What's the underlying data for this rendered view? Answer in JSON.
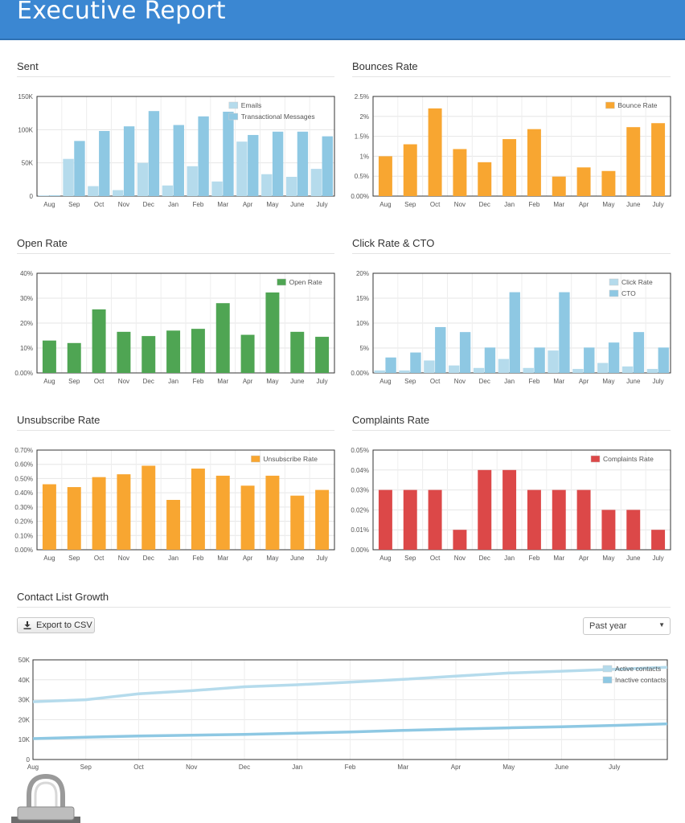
{
  "header": {
    "title": "Executive Report"
  },
  "sections": {
    "sent": "Sent",
    "bounces": "Bounces Rate",
    "open": "Open Rate",
    "click": "Click Rate & CTO",
    "unsub": "Unsubscribe Rate",
    "complaints": "Complaints Rate",
    "growth": "Contact List Growth"
  },
  "controls": {
    "export_label": "Export to CSV",
    "period_value": "Past year"
  },
  "colors": {
    "light_blue": "#b5dbec",
    "blue": "#8ec8e3",
    "orange": "#f8a631",
    "green": "#4fa553",
    "red": "#dc4848",
    "header": "#3b87d2"
  },
  "chart_data": [
    {
      "id": "sent",
      "type": "bar",
      "categories": [
        "Aug",
        "Sep",
        "Oct",
        "Nov",
        "Dec",
        "Jan",
        "Feb",
        "Mar",
        "Apr",
        "May",
        "June",
        "July"
      ],
      "yticks": [
        "0",
        "50K",
        "100K",
        "150K"
      ],
      "ylim": [
        0,
        150000
      ],
      "series": [
        {
          "name": "Emails",
          "color": "#b5dbec",
          "values": [
            1000,
            56000,
            15000,
            9000,
            50000,
            16000,
            45000,
            22000,
            82000,
            33000,
            29000,
            41000
          ]
        },
        {
          "name": "Transactional Messages",
          "color": "#8ec8e3",
          "values": [
            1000,
            83000,
            98000,
            105000,
            128000,
            107000,
            120000,
            127000,
            92000,
            97000,
            97000,
            90000
          ]
        }
      ],
      "legend": "top-right",
      "grid": true
    },
    {
      "id": "bounces",
      "type": "bar",
      "categories": [
        "Aug",
        "Sep",
        "Oct",
        "Nov",
        "Dec",
        "Jan",
        "Feb",
        "Mar",
        "Apr",
        "May",
        "June",
        "July"
      ],
      "yticks": [
        "0.00%",
        "0.5%",
        "1%",
        "1.5%",
        "2%",
        "2.5%"
      ],
      "ylim": [
        0,
        2.5
      ],
      "series": [
        {
          "name": "Bounce Rate",
          "color": "#f8a631",
          "values": [
            1.0,
            1.3,
            2.2,
            1.18,
            0.85,
            1.43,
            1.68,
            0.49,
            0.72,
            0.63,
            1.73,
            1.83
          ]
        }
      ],
      "legend": "top-right",
      "grid": true
    },
    {
      "id": "open",
      "type": "bar",
      "categories": [
        "Aug",
        "Sep",
        "Oct",
        "Nov",
        "Dec",
        "Jan",
        "Feb",
        "Mar",
        "Apr",
        "May",
        "June",
        "July"
      ],
      "yticks": [
        "0.00%",
        "10%",
        "20%",
        "30%",
        "40%"
      ],
      "ylim": [
        0,
        40
      ],
      "series": [
        {
          "name": "Open Rate",
          "color": "#4fa553",
          "values": [
            13,
            12,
            25.5,
            16.5,
            14.8,
            17,
            17.7,
            28,
            15.3,
            32.3,
            16.5,
            14.5
          ]
        }
      ],
      "legend": "top-right",
      "grid": true
    },
    {
      "id": "click",
      "type": "bar",
      "categories": [
        "Aug",
        "Sep",
        "Oct",
        "Nov",
        "Dec",
        "Jan",
        "Feb",
        "Mar",
        "Apr",
        "May",
        "June",
        "July"
      ],
      "yticks": [
        "0.00%",
        "5%",
        "10%",
        "15%",
        "20%"
      ],
      "ylim": [
        0,
        20
      ],
      "series": [
        {
          "name": "Click Rate",
          "color": "#b5dbec",
          "values": [
            0.5,
            0.5,
            2.5,
            1.5,
            1.0,
            2.8,
            1.0,
            4.5,
            0.8,
            2.0,
            1.3,
            0.8
          ]
        },
        {
          "name": "CTO",
          "color": "#8ec8e3",
          "values": [
            3.1,
            4.1,
            9.2,
            8.2,
            5.1,
            16.2,
            5.1,
            16.2,
            5.1,
            6.1,
            8.2,
            5.1
          ]
        }
      ],
      "legend": "top-right",
      "grid": true
    },
    {
      "id": "unsub",
      "type": "bar",
      "categories": [
        "Aug",
        "Sep",
        "Oct",
        "Nov",
        "Dec",
        "Jan",
        "Feb",
        "Mar",
        "Apr",
        "May",
        "June",
        "July"
      ],
      "yticks": [
        "0.00%",
        "0.10%",
        "0.20%",
        "0.30%",
        "0.40%",
        "0.50%",
        "0.60%",
        "0.70%"
      ],
      "ylim": [
        0,
        0.7
      ],
      "series": [
        {
          "name": "Unsubscribe Rate",
          "color": "#f8a631",
          "values": [
            0.46,
            0.44,
            0.51,
            0.53,
            0.59,
            0.35,
            0.57,
            0.52,
            0.45,
            0.52,
            0.38,
            0.42
          ]
        }
      ],
      "legend": "top-right",
      "grid": true
    },
    {
      "id": "complaints",
      "type": "bar",
      "categories": [
        "Aug",
        "Sep",
        "Oct",
        "Nov",
        "Dec",
        "Jan",
        "Feb",
        "Mar",
        "Apr",
        "May",
        "June",
        "July"
      ],
      "yticks": [
        "0.00%",
        "0.01%",
        "0.02%",
        "0.03%",
        "0.04%",
        "0.05%"
      ],
      "ylim": [
        0,
        0.05
      ],
      "series": [
        {
          "name": "Complaints Rate",
          "color": "#dc4848",
          "values": [
            0.03,
            0.03,
            0.03,
            0.01,
            0.04,
            0.04,
            0.03,
            0.03,
            0.03,
            0.02,
            0.02,
            0.01
          ]
        }
      ],
      "legend": "top-right",
      "grid": true
    },
    {
      "id": "growth",
      "type": "line",
      "x": [
        "Aug",
        "Sep",
        "Oct",
        "Nov",
        "Dec",
        "Jan",
        "Feb",
        "Mar",
        "Apr",
        "May",
        "June",
        "July",
        ""
      ],
      "yticks": [
        "0",
        "10K",
        "20K",
        "30K",
        "40K",
        "50K"
      ],
      "ylim": [
        0,
        50000
      ],
      "series": [
        {
          "name": "Active contacts",
          "color": "#b5dbec",
          "values": [
            29000,
            30000,
            33000,
            34500,
            36500,
            37500,
            38800,
            40200,
            41800,
            43400,
            44300,
            45300,
            46300
          ]
        },
        {
          "name": "Inactive contacts",
          "color": "#8ec8e3",
          "values": [
            10500,
            11200,
            11800,
            12200,
            12600,
            13200,
            13800,
            14600,
            15300,
            15900,
            16400,
            17100,
            17900
          ]
        }
      ],
      "legend": "top-right",
      "grid": true
    }
  ]
}
